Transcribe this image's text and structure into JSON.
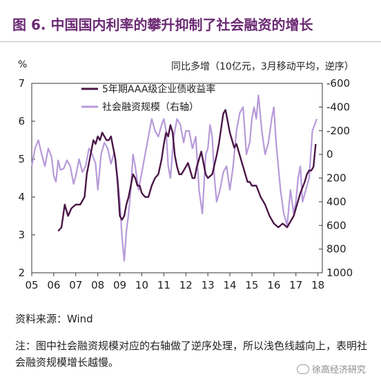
{
  "header": {
    "title": "图 6. 中国国内利率的攀升抑制了社会融资的增长",
    "left_unit": "%",
    "right_unit": "同比多增（10亿元，3月移动平均，逆序）"
  },
  "footer": {
    "source": "资料来源：Wind",
    "note": "注：图中社会融资规模对应的右轴做了逆序处理，所以浅色线越向上，表明社会融资规模增长越慢。",
    "watermark": "徐高经济研究"
  },
  "colors": {
    "yield": "#4a1646",
    "tsf": "#b79ad9",
    "title": "#6b2a73"
  },
  "chart_data": {
    "type": "line",
    "title": "中国国内利率的攀升抑制了社会融资的增长",
    "x_tick_labels": [
      "05",
      "06",
      "07",
      "08",
      "09",
      "10",
      "11",
      "12",
      "13",
      "14",
      "15",
      "16",
      "17",
      "18"
    ],
    "x_range": [
      2005.0,
      2018.2
    ],
    "left_axis": {
      "label": "%",
      "ticks": [
        2,
        3,
        4,
        5,
        6,
        7
      ],
      "range": [
        2,
        7
      ]
    },
    "right_axis": {
      "label": "同比多增（10亿元，3月移动平均，逆序）",
      "ticks": [
        -600,
        -400,
        -200,
        0,
        200,
        400,
        600,
        800,
        1000
      ],
      "range": [
        -600,
        1000
      ],
      "inverted": true
    },
    "legend_position": "top-center",
    "series": [
      {
        "name": "5年期AAA级企业债收益率",
        "axis": "left",
        "x": [
          2006.2,
          2006.35,
          2006.5,
          2006.65,
          2006.8,
          2007.0,
          2007.2,
          2007.4,
          2007.5,
          2007.6,
          2007.7,
          2007.8,
          2007.9,
          2008.0,
          2008.1,
          2008.2,
          2008.3,
          2008.4,
          2008.5,
          2008.6,
          2008.7,
          2008.8,
          2008.9,
          2009.0,
          2009.1,
          2009.2,
          2009.3,
          2009.4,
          2009.5,
          2009.6,
          2009.7,
          2009.8,
          2009.9,
          2010.0,
          2010.15,
          2010.3,
          2010.45,
          2010.6,
          2010.75,
          2010.9,
          2011.0,
          2011.1,
          2011.2,
          2011.3,
          2011.4,
          2011.5,
          2011.6,
          2011.7,
          2011.8,
          2011.9,
          2012.0,
          2012.1,
          2012.2,
          2012.3,
          2012.4,
          2012.5,
          2012.6,
          2012.7,
          2012.8,
          2012.9,
          2013.0,
          2013.2,
          2013.4,
          2013.5,
          2013.6,
          2013.7,
          2013.8,
          2013.9,
          2014.0,
          2014.1,
          2014.2,
          2014.3,
          2014.4,
          2014.5,
          2014.6,
          2014.7,
          2014.8,
          2014.9,
          2015.0,
          2015.2,
          2015.4,
          2015.6,
          2015.8,
          2016.0,
          2016.2,
          2016.4,
          2016.6,
          2016.8,
          2016.9,
          2017.0,
          2017.2,
          2017.4,
          2017.5,
          2017.6,
          2017.7,
          2017.8,
          2017.9
        ],
        "values": [
          3.1,
          3.2,
          3.8,
          3.5,
          3.7,
          3.8,
          3.8,
          4.0,
          4.6,
          4.9,
          5.2,
          5.5,
          5.4,
          5.6,
          5.5,
          5.7,
          5.6,
          5.5,
          5.5,
          5.6,
          5.3,
          5.0,
          4.4,
          3.5,
          3.4,
          3.5,
          3.8,
          4.0,
          4.3,
          4.6,
          4.5,
          4.3,
          4.3,
          4.1,
          4.0,
          4.0,
          4.3,
          4.5,
          4.6,
          5.0,
          5.4,
          5.7,
          5.6,
          5.9,
          5.7,
          5.1,
          4.8,
          4.6,
          4.6,
          4.7,
          4.8,
          4.9,
          4.7,
          4.5,
          4.5,
          4.8,
          5.0,
          5.2,
          4.9,
          4.6,
          4.5,
          4.6,
          5.1,
          5.4,
          5.8,
          6.2,
          6.3,
          6.0,
          5.7,
          5.5,
          5.3,
          5.4,
          5.2,
          5.0,
          4.8,
          4.6,
          4.4,
          4.4,
          4.3,
          4.3,
          4.0,
          3.8,
          3.5,
          3.3,
          3.2,
          3.3,
          3.2,
          3.4,
          3.5,
          3.7,
          4.1,
          4.4,
          4.6,
          4.7,
          4.7,
          4.8,
          5.4
        ]
      },
      {
        "name": "社会融资规模（右轴）",
        "axis": "right",
        "x": [
          2005.0,
          2005.15,
          2005.3,
          2005.45,
          2005.6,
          2005.75,
          2005.9,
          2006.0,
          2006.1,
          2006.2,
          2006.3,
          2006.45,
          2006.6,
          2006.75,
          2006.9,
          2007.0,
          2007.15,
          2007.3,
          2007.45,
          2007.6,
          2007.75,
          2007.9,
          2008.0,
          2008.15,
          2008.3,
          2008.45,
          2008.6,
          2008.75,
          2008.9,
          2009.0,
          2009.1,
          2009.2,
          2009.3,
          2009.4,
          2009.5,
          2009.6,
          2009.7,
          2009.85,
          2010.0,
          2010.15,
          2010.3,
          2010.45,
          2010.6,
          2010.75,
          2010.9,
          2011.0,
          2011.1,
          2011.2,
          2011.3,
          2011.45,
          2011.6,
          2011.75,
          2011.9,
          2012.0,
          2012.15,
          2012.3,
          2012.45,
          2012.6,
          2012.75,
          2012.9,
          2013.0,
          2013.1,
          2013.2,
          2013.3,
          2013.4,
          2013.55,
          2013.7,
          2013.85,
          2014.0,
          2014.15,
          2014.3,
          2014.45,
          2014.6,
          2014.75,
          2014.9,
          2015.0,
          2015.1,
          2015.2,
          2015.3,
          2015.45,
          2015.6,
          2015.75,
          2015.9,
          2016.0,
          2016.1,
          2016.2,
          2016.3,
          2016.45,
          2016.6,
          2016.75,
          2016.9,
          2017.0,
          2017.1,
          2017.2,
          2017.3,
          2017.45,
          2017.6,
          2017.75,
          2017.85,
          2017.95
        ],
        "values": [
          100,
          -50,
          -120,
          0,
          100,
          -50,
          20,
          180,
          230,
          50,
          130,
          120,
          50,
          100,
          250,
          180,
          40,
          150,
          100,
          -50,
          0,
          80,
          300,
          0,
          -100,
          -50,
          80,
          -20,
          200,
          400,
          700,
          900,
          650,
          500,
          300,
          0,
          100,
          300,
          150,
          0,
          -150,
          -300,
          -200,
          -150,
          -250,
          -300,
          -200,
          100,
          200,
          -150,
          -300,
          -250,
          -100,
          -200,
          -200,
          -50,
          -150,
          300,
          500,
          0,
          -50,
          -250,
          -150,
          200,
          400,
          300,
          150,
          100,
          300,
          100,
          -200,
          -350,
          -400,
          0,
          -100,
          -300,
          -400,
          -300,
          -500,
          -200,
          0,
          -100,
          -300,
          -400,
          -100,
          100,
          300,
          500,
          600,
          300,
          500,
          400,
          200,
          100,
          400,
          300,
          200,
          -200,
          -250,
          -300
        ]
      }
    ]
  }
}
